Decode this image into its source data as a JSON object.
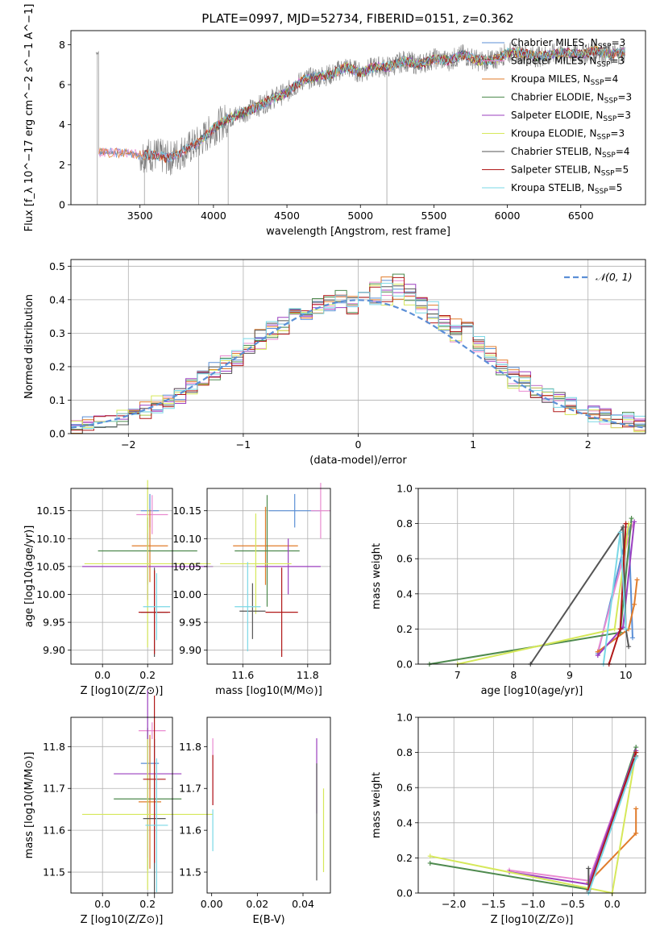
{
  "figure": {
    "title": "PLATE=0997, MJD=52734, FIBERID=0151, z=0.362"
  },
  "colors": {
    "chabrier_miles": "#5b8fd6",
    "salpeter_miles": "#e98ad0",
    "kroupa_miles": "#e07b2a",
    "chabrier_elodie": "#4e8a4e",
    "salpeter_elodie": "#9b3fbf",
    "kroupa_elodie": "#d6e85a",
    "chabrier_stelib": "#555555",
    "salpeter_stelib": "#b01818",
    "kroupa_stelib": "#7ad8e6",
    "data": "#808080"
  },
  "chart_data": [
    {
      "id": "spectrum",
      "type": "line",
      "xlabel": "wavelength [Angstrom, rest frame]",
      "ylabel": "Flux [f_λ 10^−17 erg cm^−2 s^−1 A^−1]",
      "xlim": [
        3030,
        6940
      ],
      "ylim": [
        0,
        8.7
      ],
      "xticks": [
        3500,
        4000,
        4500,
        5000,
        5500,
        6000,
        6500
      ],
      "yticks": [
        0,
        2,
        4,
        6,
        8
      ],
      "legend_position": "top-right",
      "legend": [
        {
          "name": "Chabrier MILES, N",
          "sub": "SSP",
          "suffix": "=3",
          "color_key": "chabrier_miles"
        },
        {
          "name": "Salpeter MILES, N",
          "sub": "SSP",
          "suffix": "=3",
          "color_key": "salpeter_miles"
        },
        {
          "name": "Kroupa MILES, N",
          "sub": "SSP",
          "suffix": "=4",
          "color_key": "kroupa_miles"
        },
        {
          "name": "Chabrier ELODIE, N",
          "sub": "SSP",
          "suffix": "=3",
          "color_key": "chabrier_elodie"
        },
        {
          "name": "Salpeter ELODIE, N",
          "sub": "SSP",
          "suffix": "=3",
          "color_key": "salpeter_elodie"
        },
        {
          "name": "Kroupa ELODIE, N",
          "sub": "SSP",
          "suffix": "=3",
          "color_key": "kroupa_elodie"
        },
        {
          "name": "Chabrier STELIB, N",
          "sub": "SSP",
          "suffix": "=4",
          "color_key": "chabrier_stelib"
        },
        {
          "name": "Salpeter STELIB, N",
          "sub": "SSP",
          "suffix": "=5",
          "color_key": "salpeter_stelib"
        },
        {
          "name": "Kroupa STELIB, N",
          "sub": "SSP",
          "suffix": "=5",
          "color_key": "kroupa_stelib"
        }
      ],
      "model_continuum": {
        "x": [
          3220,
          3300,
          3400,
          3500,
          3600,
          3700,
          3800,
          3900,
          4000,
          4100,
          4200,
          4300,
          4400,
          4500,
          4600,
          4700,
          4800,
          4900,
          5000,
          5100,
          5200,
          5300,
          5400,
          5500,
          5600,
          5700,
          5800,
          5900,
          6000,
          6100,
          6200,
          6300,
          6400,
          6500,
          6600,
          6700,
          6800
        ],
        "y": [
          2.6,
          2.6,
          2.6,
          2.5,
          2.5,
          2.3,
          2.7,
          3.1,
          3.8,
          4.3,
          4.6,
          4.9,
          5.3,
          5.6,
          6.2,
          6.4,
          6.5,
          6.9,
          6.6,
          6.9,
          6.9,
          7.2,
          7.0,
          7.3,
          7.2,
          7.5,
          7.2,
          7.2,
          7.6,
          7.6,
          7.4,
          7.5,
          7.6,
          7.5,
          7.7,
          7.5,
          7.6
        ]
      },
      "data_spectrum": {
        "x_start": 3200,
        "x_end": 6800,
        "note_series": "observed"
      }
    },
    {
      "id": "residuals",
      "type": "line",
      "xlabel": "(data-model)/error",
      "ylabel": "Normed distribution",
      "xlim": [
        -2.5,
        2.5
      ],
      "ylim": [
        0,
        0.52
      ],
      "xticks": [
        -2,
        -1,
        0,
        1,
        2
      ],
      "yticks": [
        0.0,
        0.1,
        0.2,
        0.3,
        0.4,
        0.5
      ],
      "grid": true,
      "legend_position": "top-right",
      "legend": [
        {
          "name": "𝒩(0, 1)",
          "color": "#5b8fd6",
          "dash": true
        }
      ],
      "bin_centers": [
        -2.45,
        -2.35,
        -2.25,
        -2.15,
        -2.05,
        -1.95,
        -1.85,
        -1.75,
        -1.65,
        -1.55,
        -1.45,
        -1.35,
        -1.25,
        -1.15,
        -1.05,
        -0.95,
        -0.85,
        -0.75,
        -0.65,
        -0.55,
        -0.45,
        -0.35,
        -0.25,
        -0.15,
        -0.05,
        0.05,
        0.15,
        0.25,
        0.35,
        0.45,
        0.55,
        0.65,
        0.75,
        0.85,
        0.95,
        1.05,
        1.15,
        1.25,
        1.35,
        1.45,
        1.55,
        1.65,
        1.75,
        1.85,
        1.95,
        2.05,
        2.15,
        2.25,
        2.35,
        2.45
      ],
      "series_values": [
        [
          0.02,
          0.03,
          0.03,
          0.04,
          0.04,
          0.06,
          0.07,
          0.08,
          0.1,
          0.11,
          0.14,
          0.17,
          0.19,
          0.2,
          0.23,
          0.26,
          0.29,
          0.31,
          0.33,
          0.35,
          0.36,
          0.38,
          0.39,
          0.4,
          0.39,
          0.42,
          0.4,
          0.45,
          0.42,
          0.43,
          0.38,
          0.37,
          0.33,
          0.32,
          0.3,
          0.27,
          0.24,
          0.2,
          0.18,
          0.16,
          0.13,
          0.11,
          0.1,
          0.09,
          0.08,
          0.06,
          0.05,
          0.04,
          0.04,
          0.03
        ],
        [
          0.02,
          0.02,
          0.03,
          0.04,
          0.05,
          0.06,
          0.07,
          0.09,
          0.1,
          0.12,
          0.14,
          0.16,
          0.17,
          0.21,
          0.22,
          0.25,
          0.27,
          0.3,
          0.32,
          0.34,
          0.37,
          0.39,
          0.39,
          0.41,
          0.38,
          0.43,
          0.45,
          0.4,
          0.46,
          0.4,
          0.39,
          0.35,
          0.33,
          0.29,
          0.31,
          0.26,
          0.23,
          0.2,
          0.16,
          0.15,
          0.12,
          0.11,
          0.09,
          0.08,
          0.07,
          0.06,
          0.05,
          0.04,
          0.04,
          0.03
        ]
      ],
      "normal_curve": "N(0,1)"
    },
    {
      "id": "age_vs_Z",
      "type": "scatter",
      "xlabel": "Z [log10(Z/Z⊙)]",
      "ylabel": "age  [log10(age/yr)]",
      "xlim": [
        -0.14,
        0.31
      ],
      "ylim": [
        9.875,
        10.19
      ],
      "xticks": [
        0.0,
        0.2
      ],
      "yticks": [
        9.9,
        9.95,
        10.0,
        10.05,
        10.1,
        10.15
      ],
      "grid": true,
      "points": [
        {
          "x": 0.21,
          "y": 10.15,
          "xerr": 0.04,
          "yerr": 0.03,
          "color_key": "chabrier_miles"
        },
        {
          "x": 0.22,
          "y": 10.143,
          "xerr": 0.07,
          "yerr": 0.035,
          "color_key": "salpeter_miles"
        },
        {
          "x": 0.21,
          "y": 10.087,
          "xerr": 0.08,
          "yerr": 0.065,
          "color_key": "kroupa_miles"
        },
        {
          "x": 0.2,
          "y": 10.078,
          "xerr": 0.22,
          "yerr": 0.06,
          "color_key": "chabrier_elodie"
        },
        {
          "x": 0.2,
          "y": 10.05,
          "xerr": 0.29,
          "yerr": 0.06,
          "color_key": "salpeter_elodie"
        },
        {
          "x": 0.2,
          "y": 10.055,
          "xerr": 0.28,
          "yerr": 0.15,
          "color_key": "kroupa_elodie"
        },
        {
          "x": 0.23,
          "y": 9.968,
          "xerr": 0.06,
          "yerr": 0.08,
          "color_key": "chabrier_stelib"
        },
        {
          "x": 0.23,
          "y": 9.968,
          "xerr": 0.07,
          "yerr": 0.075,
          "color_key": "salpeter_stelib"
        },
        {
          "x": 0.24,
          "y": 9.978,
          "xerr": 0.06,
          "yerr": 0.06,
          "color_key": "kroupa_stelib"
        }
      ]
    },
    {
      "id": "age_vs_mass",
      "type": "scatter",
      "xlabel": "mass [log10(M/M⊙)]",
      "ylabel": "",
      "xlim": [
        11.49,
        11.87
      ],
      "ylim": [
        9.875,
        10.19
      ],
      "xticks": [
        11.6,
        11.8
      ],
      "yticks": [
        9.9,
        9.95,
        10.0,
        10.05,
        10.1,
        10.15
      ],
      "grid": true,
      "points": [
        {
          "x": 11.76,
          "y": 10.15,
          "xerr": 0.08,
          "yerr": 0.03,
          "color_key": "chabrier_miles"
        },
        {
          "x": 11.84,
          "y": 10.15,
          "xerr": 0.03,
          "yerr": 0.05,
          "color_key": "salpeter_miles"
        },
        {
          "x": 11.67,
          "y": 10.087,
          "xerr": 0.1,
          "yerr": 0.07,
          "color_key": "kroupa_miles"
        },
        {
          "x": 11.675,
          "y": 10.078,
          "xerr": 0.1,
          "yerr": 0.1,
          "color_key": "chabrier_elodie"
        },
        {
          "x": 11.74,
          "y": 10.05,
          "xerr": 0.1,
          "yerr": 0.05,
          "color_key": "salpeter_elodie"
        },
        {
          "x": 11.64,
          "y": 10.055,
          "xerr": 0.11,
          "yerr": 0.09,
          "color_key": "kroupa_elodie"
        },
        {
          "x": 11.63,
          "y": 9.97,
          "xerr": 0.04,
          "yerr": 0.05,
          "color_key": "chabrier_stelib"
        },
        {
          "x": 11.72,
          "y": 9.968,
          "xerr": 0.05,
          "yerr": 0.08,
          "color_key": "salpeter_stelib"
        },
        {
          "x": 11.615,
          "y": 9.978,
          "xerr": 0.04,
          "yerr": 0.08,
          "color_key": "kroupa_stelib"
        }
      ]
    },
    {
      "id": "weights_vs_age",
      "type": "line",
      "xlabel": "age  [log10(age/yr)]",
      "ylabel": "mass weight",
      "xlim": [
        6.3,
        10.35
      ],
      "ylim": [
        0,
        1.0
      ],
      "xticks": [
        7,
        8,
        9,
        10
      ],
      "yticks": [
        0.0,
        0.2,
        0.4,
        0.6,
        0.8,
        1.0
      ],
      "grid": true,
      "series": [
        {
          "color_key": "chabrier_miles",
          "x": [
            9.5,
            10.05,
            10.12
          ],
          "y": [
            0.06,
            0.78,
            0.15
          ]
        },
        {
          "color_key": "salpeter_miles",
          "x": [
            9.5,
            10.1,
            10.15
          ],
          "y": [
            0.07,
            0.78,
            0.81
          ]
        },
        {
          "color_key": "kroupa_miles",
          "x": [
            9.5,
            10.05,
            10.15,
            10.2
          ],
          "y": [
            0.07,
            0.2,
            0.34,
            0.48
          ]
        },
        {
          "color_key": "chabrier_elodie",
          "x": [
            6.5,
            9.9,
            10.1
          ],
          "y": [
            0.0,
            0.18,
            0.83
          ]
        },
        {
          "color_key": "salpeter_elodie",
          "x": [
            9.5,
            9.95,
            10.15
          ],
          "y": [
            0.05,
            0.21,
            0.81
          ]
        },
        {
          "color_key": "kroupa_elodie",
          "x": [
            7.0,
            9.8,
            10.05
          ],
          "y": [
            0.0,
            0.2,
            0.8
          ]
        },
        {
          "color_key": "chabrier_stelib",
          "x": [
            8.3,
            9.95,
            10.0,
            10.05
          ],
          "y": [
            0.0,
            0.78,
            0.2,
            0.1
          ]
        },
        {
          "color_key": "salpeter_stelib",
          "x": [
            9.7,
            9.9,
            10.0
          ],
          "y": [
            0.0,
            0.2,
            0.8
          ]
        },
        {
          "color_key": "kroupa_stelib",
          "x": [
            9.6,
            9.9,
            10.0
          ],
          "y": [
            0.0,
            0.75,
            0.2
          ]
        }
      ]
    },
    {
      "id": "mass_vs_Z",
      "type": "scatter",
      "xlabel": "Z [log10(Z/Z⊙)]",
      "ylabel": "mass [log10(M/M⊙)]",
      "xlim": [
        -0.14,
        0.31
      ],
      "ylim": [
        11.45,
        11.87
      ],
      "xticks": [
        0.0,
        0.2
      ],
      "yticks": [
        11.5,
        11.6,
        11.7,
        11.8
      ],
      "grid": true,
      "points": [
        {
          "x": 0.21,
          "y": 11.76,
          "xerr": 0.04,
          "yerr": 0.06,
          "color_key": "chabrier_miles"
        },
        {
          "x": 0.22,
          "y": 11.838,
          "xerr": 0.06,
          "yerr": 0.02,
          "color_key": "salpeter_miles"
        },
        {
          "x": 0.21,
          "y": 11.668,
          "xerr": 0.05,
          "yerr": 0.16,
          "color_key": "kroupa_miles"
        },
        {
          "x": 0.2,
          "y": 11.675,
          "xerr": 0.15,
          "yerr": 0.17,
          "color_key": "chabrier_elodie"
        },
        {
          "x": 0.2,
          "y": 11.735,
          "xerr": 0.15,
          "yerr": 0.2,
          "color_key": "salpeter_elodie"
        },
        {
          "x": 0.2,
          "y": 11.638,
          "xerr": 0.29,
          "yerr": 0.18,
          "color_key": "kroupa_elodie"
        },
        {
          "x": 0.23,
          "y": 11.628,
          "xerr": 0.05,
          "yerr": 0.19,
          "color_key": "chabrier_stelib"
        },
        {
          "x": 0.23,
          "y": 11.722,
          "xerr": 0.05,
          "yerr": 0.2,
          "color_key": "salpeter_stelib"
        },
        {
          "x": 0.24,
          "y": 11.612,
          "xerr": 0.05,
          "yerr": 0.16,
          "color_key": "kroupa_stelib"
        }
      ]
    },
    {
      "id": "mass_vs_ebv",
      "type": "scatter",
      "xlabel": "E(B-V)",
      "ylabel": "",
      "xlim": [
        -0.002,
        0.052
      ],
      "ylim": [
        11.45,
        11.87
      ],
      "xticks": [
        0.0,
        0.02,
        0.04
      ],
      "yticks": [
        11.5,
        11.6,
        11.7,
        11.8
      ],
      "points": [
        {
          "x": 0.0005,
          "y": 11.74,
          "yerr": 0.08,
          "color_key": "salpeter_miles"
        },
        {
          "x": 0.0005,
          "y": 11.72,
          "yerr": 0.06,
          "color_key": "salpeter_stelib"
        },
        {
          "x": 0.0005,
          "y": 11.6,
          "yerr": 0.05,
          "color_key": "kroupa_stelib"
        },
        {
          "x": 0.046,
          "y": 11.73,
          "yerr": 0.09,
          "color_key": "salpeter_elodie"
        },
        {
          "x": 0.046,
          "y": 11.62,
          "yerr": 0.14,
          "color_key": "chabrier_stelib"
        },
        {
          "x": 0.049,
          "y": 11.6,
          "yerr": 0.1,
          "color_key": "kroupa_elodie"
        }
      ]
    },
    {
      "id": "weights_vs_Z",
      "type": "line",
      "xlabel": "Z [log10(Z/Z⊙)]",
      "ylabel": "mass weight",
      "xlim": [
        -2.45,
        0.42
      ],
      "ylim": [
        0,
        1.0
      ],
      "xticks": [
        -2.0,
        -1.5,
        -1.0,
        -0.5,
        0.0
      ],
      "yticks": [
        0.0,
        0.2,
        0.4,
        0.6,
        0.8,
        1.0
      ],
      "grid": true,
      "series": [
        {
          "color_key": "chabrier_miles",
          "x": [
            -0.3,
            0.3
          ],
          "y": [
            0.02,
            0.8
          ]
        },
        {
          "color_key": "salpeter_miles",
          "x": [
            -1.3,
            -0.3,
            0.3
          ],
          "y": [
            0.13,
            0.07,
            0.81
          ]
        },
        {
          "color_key": "kroupa_miles",
          "x": [
            -0.3,
            0.3,
            0.3
          ],
          "y": [
            0.06,
            0.34,
            0.48
          ]
        },
        {
          "color_key": "chabrier_elodie",
          "x": [
            -2.3,
            -0.3,
            0.3
          ],
          "y": [
            0.17,
            0.02,
            0.83
          ]
        },
        {
          "color_key": "salpeter_elodie",
          "x": [
            -1.3,
            -0.3,
            0.3
          ],
          "y": [
            0.12,
            0.05,
            0.81
          ]
        },
        {
          "color_key": "kroupa_elodie",
          "x": [
            -2.3,
            0.0,
            0.3
          ],
          "y": [
            0.21,
            0.0,
            0.8
          ]
        },
        {
          "color_key": "chabrier_stelib",
          "x": [
            -0.3,
            -0.3,
            0.3
          ],
          "y": [
            0.14,
            0.01,
            0.78
          ]
        },
        {
          "color_key": "salpeter_stelib",
          "x": [
            -0.3,
            0.3
          ],
          "y": [
            0.02,
            0.8
          ]
        },
        {
          "color_key": "kroupa_stelib",
          "x": [
            -0.3,
            0.3
          ],
          "y": [
            0.0,
            0.77
          ]
        }
      ]
    }
  ]
}
